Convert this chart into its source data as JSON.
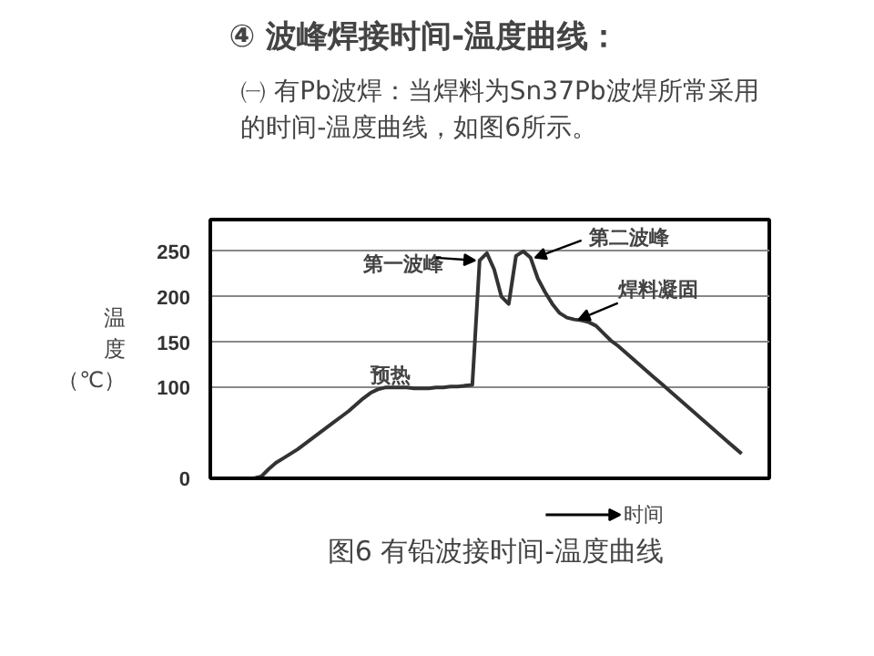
{
  "chart_data": {
    "type": "line",
    "title": "④ 波峰焊接时间-温度曲线：",
    "subtitle": "㈠ 有Pb波焊：当焊料为Sn37Pb波焊所常采用的时间-温度曲线，如图6所示。",
    "ylabel": "温度（℃）",
    "xlabel": "时间",
    "annotations": [
      "第一波峰",
      "第二波峰",
      "焊料凝固",
      "预热",
      "图6 有铅波接时间-温度曲线"
    ],
    "categories": [
      null,
      null,
      null,
      null,
      null,
      null,
      null,
      null,
      null,
      null,
      null,
      null,
      null,
      null,
      null,
      null,
      null,
      null,
      null,
      null,
      null,
      null,
      null,
      null,
      null,
      null,
      null,
      null,
      null,
      null,
      null,
      null,
      null,
      null,
      null,
      null,
      null,
      null,
      null,
      null,
      null,
      null,
      null,
      null,
      null,
      null,
      null,
      null,
      null,
      null,
      null,
      null,
      null,
      null,
      null,
      null,
      null,
      null,
      null,
      null,
      null,
      null,
      null,
      null,
      null,
      null,
      null,
      null,
      null,
      null,
      null,
      null,
      null,
      null,
      null,
      null,
      null
    ],
    "series": [
      {
        "color": "#333333",
        "values": [
          0,
          0,
          0,
          0,
          0,
          0,
          0,
          2,
          10,
          17,
          22,
          27,
          32,
          38,
          44,
          50,
          56,
          62,
          68,
          74,
          81,
          88,
          94,
          98,
          100,
          100,
          100,
          100,
          99,
          99,
          99,
          100,
          100,
          101,
          101,
          102,
          103,
          240,
          248,
          230,
          200,
          192,
          245,
          250,
          243,
          220,
          205,
          192,
          182,
          177,
          175,
          174,
          172,
          168,
          160,
          152,
          146,
          139,
          132,
          125,
          118,
          111,
          104,
          97,
          90,
          83,
          76,
          69,
          62,
          55,
          48,
          41,
          34,
          27,
          null,
          null,
          null
        ]
      }
    ],
    "ylim": [
      0,
      285
    ],
    "yticks": [
      0,
      100,
      150,
      200,
      250
    ],
    "grid": "y",
    "tick_labels": "y",
    "marker": "none",
    "line_style": "solid"
  }
}
